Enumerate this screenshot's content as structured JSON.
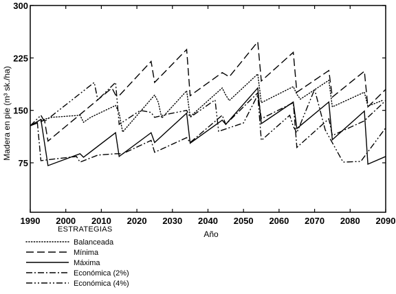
{
  "chart_data": {
    "type": "line",
    "title": "",
    "xlabel": "Año",
    "ylabel": "Madera en pie (m³ sk./ha)",
    "xlim": [
      1990,
      2090
    ],
    "ylim": [
      75,
      300
    ],
    "xticks": [
      1990,
      2000,
      2010,
      2020,
      2030,
      2040,
      2050,
      2060,
      2070,
      2080,
      2090
    ],
    "yticks": [
      75,
      150,
      225,
      300
    ],
    "grid": false,
    "legend": {
      "title": "ESTRATEGIAS",
      "placement": "below-left"
    },
    "series": [
      {
        "name": "Balanceada",
        "style": "dotted",
        "points": [
          [
            1993,
            136
          ],
          [
            1996,
            140
          ],
          [
            2004,
            143
          ],
          [
            2005,
            133
          ],
          [
            2007,
            140
          ],
          [
            2014,
            157
          ],
          [
            2015,
            146
          ],
          [
            2016,
            119
          ],
          [
            2025,
            172
          ],
          [
            2026,
            162
          ],
          [
            2027,
            139
          ],
          [
            2034,
            178
          ],
          [
            2035,
            141
          ],
          [
            2044,
            182
          ],
          [
            2045,
            172
          ],
          [
            2046,
            164
          ],
          [
            2054,
            202
          ],
          [
            2055,
            161
          ],
          [
            2064,
            184
          ],
          [
            2065,
            173
          ],
          [
            2066,
            166
          ],
          [
            2074,
            193
          ],
          [
            2075,
            155
          ],
          [
            2084,
            176
          ],
          [
            2085,
            156
          ],
          [
            2089,
            164
          ]
        ]
      },
      {
        "name": "Mínima",
        "style": "dashed",
        "points": [
          [
            1990,
            128
          ],
          [
            1994,
            136
          ],
          [
            1995,
            106
          ],
          [
            2013,
            182
          ],
          [
            2014,
            172
          ],
          [
            2015,
            171
          ],
          [
            2024,
            220
          ],
          [
            2025,
            190
          ],
          [
            2034,
            237
          ],
          [
            2035,
            171
          ],
          [
            2044,
            204
          ],
          [
            2046,
            198
          ],
          [
            2054,
            248
          ],
          [
            2055,
            192
          ],
          [
            2064,
            233
          ],
          [
            2065,
            176
          ],
          [
            2074,
            207
          ],
          [
            2075,
            169
          ],
          [
            2084,
            206
          ],
          [
            2085,
            155
          ],
          [
            2090,
            180
          ]
        ]
      },
      {
        "name": "Máxima",
        "style": "solid",
        "points": [
          [
            1990,
            128
          ],
          [
            1993,
            137
          ],
          [
            1995,
            71
          ],
          [
            2004,
            88
          ],
          [
            2005,
            83
          ],
          [
            2014,
            118
          ],
          [
            2015,
            84
          ],
          [
            2024,
            118
          ],
          [
            2025,
            104
          ],
          [
            2034,
            146
          ],
          [
            2035,
            103
          ],
          [
            2044,
            136
          ],
          [
            2045,
            130
          ],
          [
            2054,
            182
          ],
          [
            2055,
            131
          ],
          [
            2064,
            162
          ],
          [
            2065,
            124
          ],
          [
            2074,
            162
          ],
          [
            2075,
            108
          ],
          [
            2084,
            149
          ],
          [
            2085,
            73
          ],
          [
            2090,
            84
          ]
        ]
      },
      {
        "name": "Económica (2%)",
        "style": "dash-dot",
        "points": [
          [
            1992,
            133
          ],
          [
            1993,
            78
          ],
          [
            1996,
            80
          ],
          [
            2003,
            84
          ],
          [
            2004,
            76
          ],
          [
            2009,
            86
          ],
          [
            2014,
            88
          ],
          [
            2016,
            88
          ],
          [
            2024,
            107
          ],
          [
            2025,
            90
          ],
          [
            2034,
            111
          ],
          [
            2035,
            104
          ],
          [
            2044,
            143
          ],
          [
            2045,
            130
          ],
          [
            2054,
            175
          ],
          [
            2055,
            138
          ],
          [
            2064,
            161
          ],
          [
            2065,
            97
          ],
          [
            2074,
            138
          ],
          [
            2075,
            114
          ],
          [
            2084,
            135
          ],
          [
            2085,
            140
          ],
          [
            2090,
            164
          ]
        ]
      },
      {
        "name": "Económica (4%)",
        "style": "dash-dot-dot",
        "points": [
          [
            1990,
            128
          ],
          [
            1993,
            143
          ],
          [
            1994,
            134
          ],
          [
            2008,
            190
          ],
          [
            2009,
            165
          ],
          [
            2014,
            190
          ],
          [
            2015,
            130
          ],
          [
            2021,
            150
          ],
          [
            2024,
            147
          ],
          [
            2025,
            140
          ],
          [
            2029,
            145
          ],
          [
            2034,
            150
          ],
          [
            2035,
            140
          ],
          [
            2042,
            165
          ],
          [
            2043,
            120
          ],
          [
            2050,
            132
          ],
          [
            2054,
            172
          ],
          [
            2055,
            107
          ],
          [
            2063,
            143
          ],
          [
            2064,
            127
          ],
          [
            2065,
            118
          ],
          [
            2070,
            180
          ],
          [
            2073,
            122
          ],
          [
            2078,
            76
          ],
          [
            2083,
            77
          ],
          [
            2090,
            125
          ]
        ]
      }
    ]
  }
}
